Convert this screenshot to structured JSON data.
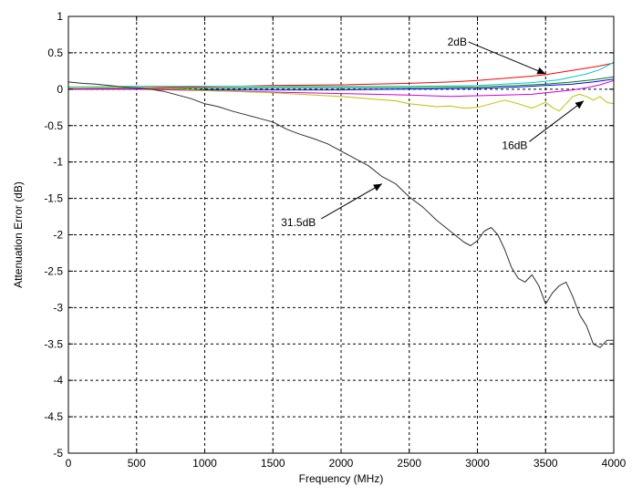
{
  "chart_data": {
    "type": "line",
    "xlabel": "Frequency (MHz)",
    "ylabel": "Attenuation Error (dB)",
    "xlim": [
      0,
      4000
    ],
    "ylim": [
      -5,
      1
    ],
    "xticks": [
      0,
      500,
      1000,
      1500,
      2000,
      2500,
      3000,
      3500,
      4000
    ],
    "xtick_labels": [
      "0",
      "500",
      "1000",
      "1500",
      "2000",
      "2500",
      "3000",
      "3500",
      "4000"
    ],
    "yticks": [
      -5,
      -4.5,
      -4,
      -3.5,
      -3,
      -2.5,
      -2,
      -1.5,
      -1,
      -0.5,
      0,
      0.5,
      1
    ],
    "ytick_labels": [
      "-5",
      "-4.5",
      "-4",
      "-3.5",
      "-3",
      "-2.5",
      "-2",
      "-1.5",
      "-1",
      "-0.5",
      "0",
      "0.5",
      "1"
    ],
    "grid": true,
    "series": [
      {
        "color": "#ff0000",
        "x": [
          0,
          500,
          1000,
          1500,
          2000,
          2500,
          2800,
          3000,
          3200,
          3400,
          3500,
          3600,
          3700,
          3800,
          3900,
          4000
        ],
        "y": [
          0.0,
          0.02,
          0.03,
          0.05,
          0.06,
          0.08,
          0.1,
          0.12,
          0.15,
          0.18,
          0.2,
          0.23,
          0.26,
          0.29,
          0.32,
          0.36
        ]
      },
      {
        "color": "#00c8c8",
        "x": [
          0,
          500,
          1000,
          1500,
          2000,
          2500,
          3000,
          3200,
          3400,
          3500,
          3600,
          3700,
          3800,
          3900,
          4000
        ],
        "y": [
          0.03,
          0.04,
          0.04,
          0.04,
          0.04,
          0.04,
          0.05,
          0.07,
          0.09,
          0.11,
          0.13,
          0.17,
          0.21,
          0.27,
          0.37
        ]
      },
      {
        "color": "#008000",
        "x": [
          0,
          500,
          1000,
          1500,
          2000,
          2500,
          3000,
          3300,
          3500,
          3700,
          3850,
          4000
        ],
        "y": [
          0.0,
          0.01,
          0.01,
          0.02,
          0.02,
          0.02,
          0.03,
          0.05,
          0.07,
          0.1,
          0.13,
          0.17
        ]
      },
      {
        "color": "#0000ff",
        "x": [
          0,
          500,
          1000,
          1500,
          2000,
          2500,
          3000,
          3300,
          3500,
          3700,
          3850,
          4000
        ],
        "y": [
          0.0,
          0.0,
          -0.01,
          -0.01,
          -0.01,
          0.0,
          0.01,
          0.03,
          0.05,
          0.07,
          0.1,
          0.14
        ]
      },
      {
        "color": "#d000d0",
        "x": [
          0,
          500,
          1000,
          1500,
          2000,
          2500,
          2800,
          3000,
          3200,
          3400,
          3500,
          3600,
          3700,
          3800,
          3900,
          4000
        ],
        "y": [
          0.0,
          0.0,
          -0.02,
          -0.04,
          -0.06,
          -0.08,
          -0.1,
          -0.09,
          -0.08,
          -0.07,
          -0.05,
          -0.03,
          -0.01,
          0.02,
          0.06,
          0.12
        ]
      },
      {
        "color": "#c0c000",
        "x": [
          0,
          500,
          800,
          1000,
          1200,
          1500,
          1800,
          2000,
          2200,
          2400,
          2500,
          2600,
          2700,
          2800,
          2900,
          3000,
          3100,
          3200,
          3300,
          3400,
          3450,
          3500,
          3550,
          3600,
          3650,
          3700,
          3750,
          3800,
          3850,
          3900,
          3950,
          4000
        ],
        "y": [
          0.02,
          0.02,
          0.0,
          -0.02,
          -0.03,
          -0.05,
          -0.08,
          -0.1,
          -0.13,
          -0.16,
          -0.2,
          -0.22,
          -0.24,
          -0.23,
          -0.26,
          -0.25,
          -0.2,
          -0.15,
          -0.2,
          -0.26,
          -0.22,
          -0.18,
          -0.25,
          -0.3,
          -0.2,
          -0.1,
          -0.07,
          -0.1,
          -0.15,
          -0.1,
          -0.18,
          -0.2
        ]
      },
      {
        "color": "#303030",
        "x": [
          0,
          100,
          200,
          300,
          400,
          500,
          600,
          700,
          800,
          900,
          1000,
          1100,
          1200,
          1300,
          1400,
          1500,
          1600,
          1700,
          1800,
          1900,
          2000,
          2100,
          2200,
          2300,
          2400,
          2500,
          2600,
          2700,
          2800,
          2900,
          2950,
          3000,
          3050,
          3100,
          3150,
          3200,
          3250,
          3300,
          3350,
          3400,
          3450,
          3500,
          3550,
          3600,
          3650,
          3700,
          3750,
          3800,
          3850,
          3900,
          3950,
          4000
        ],
        "y": [
          0.1,
          0.08,
          0.07,
          0.05,
          0.03,
          0.02,
          0.0,
          -0.03,
          -0.08,
          -0.13,
          -0.2,
          -0.24,
          -0.3,
          -0.35,
          -0.4,
          -0.45,
          -0.55,
          -0.62,
          -0.68,
          -0.75,
          -0.85,
          -0.95,
          -1.05,
          -1.2,
          -1.3,
          -1.48,
          -1.62,
          -1.8,
          -1.95,
          -2.1,
          -2.15,
          -2.08,
          -1.95,
          -1.9,
          -2.0,
          -2.2,
          -2.45,
          -2.6,
          -2.65,
          -2.55,
          -2.7,
          -2.95,
          -2.8,
          -2.7,
          -2.65,
          -2.85,
          -3.1,
          -3.25,
          -3.5,
          -3.55,
          -3.45,
          -3.45
        ]
      }
    ],
    "annotations": [
      {
        "text": "2dB",
        "text_x": 2780,
        "text_y": 0.6,
        "arrow_to_x": 3500,
        "arrow_to_y": 0.21
      },
      {
        "text": "16dB",
        "text_x": 3180,
        "text_y": -0.82,
        "arrow_to_x": 3780,
        "arrow_to_y": -0.16
      },
      {
        "text": "31.5dB",
        "text_x": 1560,
        "text_y": -1.88,
        "arrow_to_x": 2300,
        "arrow_to_y": -1.3
      }
    ]
  }
}
